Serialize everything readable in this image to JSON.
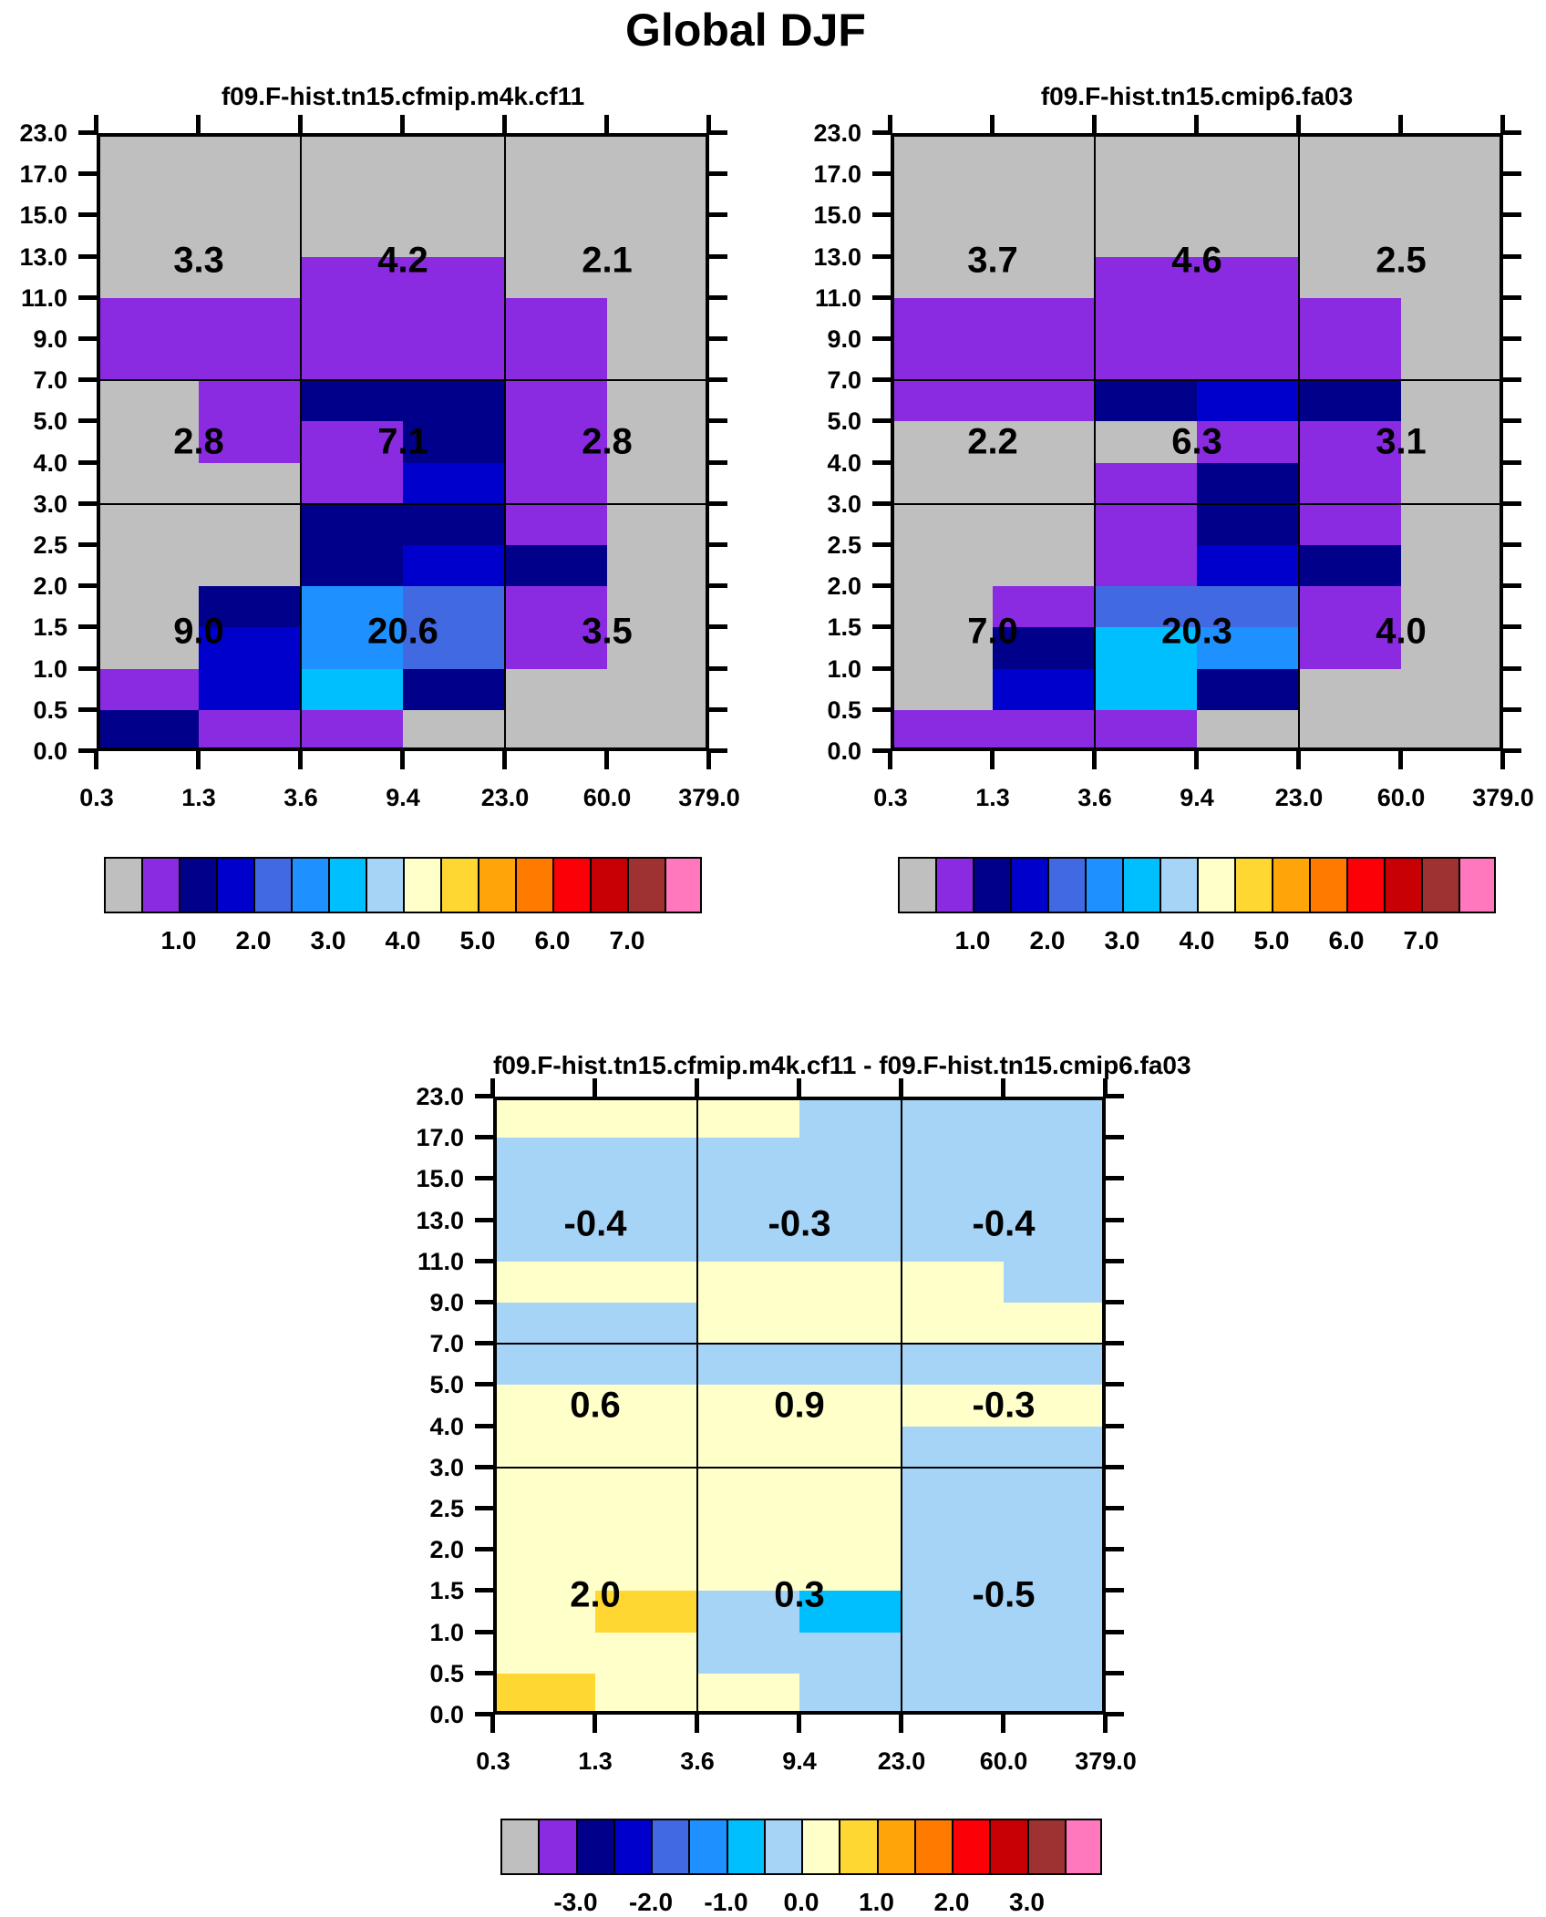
{
  "title": "Global DJF",
  "palette": {
    "G": "#BFBFBF",
    "P": "#8A2BE2",
    "N": "#00008B",
    "B": "#0000CD",
    "R": "#4169E1",
    "D": "#1E90FF",
    "C": "#00BFFF",
    "L": "#A6D4F7",
    "Y": "#FFFFC9",
    "O": "#FFD733",
    "A": "#FFA50A",
    "T": "#FF7B00",
    "E": "#FB0006",
    "K": "#C90003",
    "W": "#9E3232",
    "I": "#FF77BC"
  },
  "colorbar_sequence": [
    "G",
    "P",
    "N",
    "B",
    "R",
    "D",
    "C",
    "L",
    "Y",
    "O",
    "A",
    "T",
    "E",
    "K",
    "W",
    "I"
  ],
  "axes": {
    "x_tick_labels": [
      "0.3",
      "1.3",
      "3.6",
      "9.4",
      "23.0",
      "60.0",
      "379.0"
    ],
    "y_tick_labels": [
      "23.0",
      "17.0",
      "15.0",
      "13.0",
      "11.0",
      "9.0",
      "7.0",
      "5.0",
      "4.0",
      "3.0",
      "2.5",
      "2.0",
      "1.5",
      "1.0",
      "0.5",
      "0.0"
    ]
  },
  "colorbar_labels": {
    "top": [
      "1.0",
      "2.0",
      "3.0",
      "4.0",
      "5.0",
      "6.0",
      "7.0"
    ],
    "diff": [
      "-3.0",
      "-2.0",
      "-1.0",
      "0.0",
      "1.0",
      "2.0",
      "3.0"
    ]
  },
  "chart_data": [
    {
      "type": "heatmap",
      "panel": "top-left",
      "title": "f09.F-hist.tn15.cfmip.m4k.cf11",
      "x_bin_edges": [
        0.3,
        1.3,
        3.6,
        9.4,
        23.0,
        60.0,
        379.0
      ],
      "y_bin_edges": [
        23.0,
        17.0,
        15.0,
        13.0,
        11.0,
        9.0,
        7.0,
        5.0,
        4.0,
        3.0,
        2.5,
        2.0,
        1.5,
        1.0,
        0.5,
        0.0
      ],
      "cell_colors": [
        "GGGGGG",
        "GGGGGG",
        "GGGGGG",
        "GGPPGG",
        "PPPPPG",
        "PPPPPG",
        "GPNNPG",
        "GPPNPG",
        "GGPBPG",
        "GGNNPG",
        "GGNBNG",
        "GNDRPG",
        "GBDRPG",
        "PBCNGG",
        "NPPGGG"
      ],
      "region_values": [
        [
          "3.3",
          "4.2",
          "2.1"
        ],
        [
          "2.8",
          "7.1",
          "2.8"
        ],
        [
          "9.0",
          "20.6",
          "3.5"
        ]
      ],
      "colorbar": "top"
    },
    {
      "type": "heatmap",
      "panel": "top-right",
      "title": "f09.F-hist.tn15.cmip6.fa03",
      "x_bin_edges": [
        0.3,
        1.3,
        3.6,
        9.4,
        23.0,
        60.0,
        379.0
      ],
      "y_bin_edges": [
        23.0,
        17.0,
        15.0,
        13.0,
        11.0,
        9.0,
        7.0,
        5.0,
        4.0,
        3.0,
        2.5,
        2.0,
        1.5,
        1.0,
        0.5,
        0.0
      ],
      "cell_colors": [
        "GGGGGG",
        "GGGGGG",
        "GGGGGG",
        "GGPPGG",
        "PPPPPG",
        "PPPPPG",
        "PPNBNG",
        "GGGPPG",
        "GGPNPG",
        "GGPNPG",
        "GGPBNG",
        "GPRRPG",
        "GNCDPG",
        "GBCNGG",
        "PPPGGG"
      ],
      "region_values": [
        [
          "3.7",
          "4.6",
          "2.5"
        ],
        [
          "2.2",
          "6.3",
          "3.1"
        ],
        [
          "7.0",
          "20.3",
          "4.0"
        ]
      ],
      "colorbar": "top"
    },
    {
      "type": "heatmap",
      "panel": "bottom-difference",
      "title": "f09.F-hist.tn15.cfmip.m4k.cf11 - f09.F-hist.tn15.cmip6.fa03",
      "x_bin_edges": [
        0.3,
        1.3,
        3.6,
        9.4,
        23.0,
        60.0,
        379.0
      ],
      "y_bin_edges": [
        23.0,
        17.0,
        15.0,
        13.0,
        11.0,
        9.0,
        7.0,
        5.0,
        4.0,
        3.0,
        2.5,
        2.0,
        1.5,
        1.0,
        0.5,
        0.0
      ],
      "cell_colors": [
        "YYYLLL",
        "LLLLLL",
        "LLLLLL",
        "LLLLLL",
        "YYYYYL",
        "LLYYYY",
        "LLLLLL",
        "YYYYYY",
        "YYYYLL",
        "YYYYLL",
        "YYYYLL",
        "YYYYLL",
        "YOLCLL",
        "YYLLLL",
        "OYYLLL"
      ],
      "region_values": [
        [
          "-0.4",
          "-0.3",
          "-0.4"
        ],
        [
          "0.6",
          "0.9",
          "-0.3"
        ],
        [
          "2.0",
          "0.3",
          "-0.5"
        ]
      ],
      "colorbar": "diff"
    }
  ]
}
